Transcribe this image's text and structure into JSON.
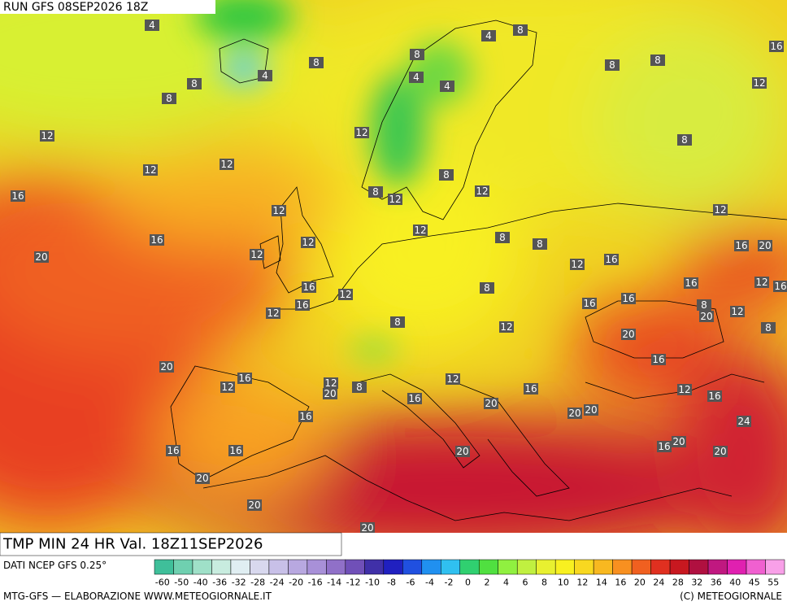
{
  "header": {
    "run": "RUN GFS 08SEP2026 18Z"
  },
  "footer": {
    "title": "TMP MIN 24 HR Val. 18Z11SEP2026",
    "source": "DATI NCEP GFS 0.25°",
    "credit": "MTG-GFS — ELABORAZIONE WWW.METEOGIORNALE.IT",
    "copyright": "(C) METEOGIORNALE"
  },
  "legend": {
    "ticks": [
      -60,
      -50,
      -40,
      -36,
      -32,
      -28,
      -24,
      -20,
      -16,
      -14,
      -12,
      -10,
      -8,
      -6,
      -4,
      -2,
      0,
      2,
      4,
      6,
      8,
      10,
      12,
      14,
      16,
      20,
      24,
      28,
      32,
      36,
      40,
      45,
      55
    ],
    "colors": [
      "#3fbf9a",
      "#6fd0b0",
      "#9fe0c8",
      "#c8ecdf",
      "#e0eef2",
      "#d8d8ee",
      "#c8c0e8",
      "#b8a8e0",
      "#a890d8",
      "#9070c8",
      "#7050b8",
      "#4030a8",
      "#2020c0",
      "#2050e0",
      "#2090f0",
      "#30c0f0",
      "#30d070",
      "#50e040",
      "#90f040",
      "#c0f040",
      "#e8f030",
      "#f8f020",
      "#f8d820",
      "#f8b820",
      "#f89020",
      "#f06020",
      "#e03020",
      "#c81820",
      "#b01040",
      "#c01880",
      "#e020b0",
      "#f060d0",
      "#f8a0e8"
    ]
  },
  "map_labels": [
    4,
    8,
    8,
    8,
    4,
    12,
    12,
    12,
    16,
    16,
    20,
    12,
    8,
    4,
    4,
    4,
    8,
    8,
    8,
    16,
    12,
    8,
    8,
    8,
    12,
    12,
    12,
    12,
    12,
    12,
    8,
    8,
    12,
    16,
    12,
    16,
    20,
    16,
    16,
    12,
    12,
    8,
    8,
    12,
    16,
    16,
    16,
    12,
    16,
    8,
    20,
    12,
    8,
    20,
    16,
    20,
    16,
    12,
    12,
    20,
    8,
    12,
    16,
    16,
    20,
    20,
    20,
    12,
    16,
    24,
    16,
    16,
    16,
    20,
    16,
    20,
    20,
    20,
    20,
    20,
    20
  ]
}
